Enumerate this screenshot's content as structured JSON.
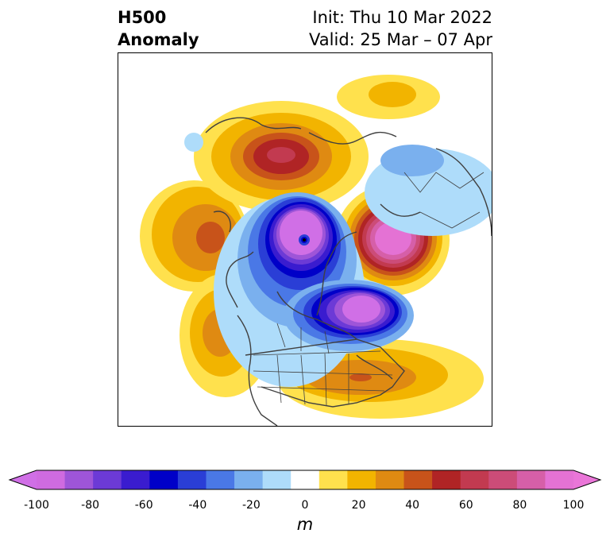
{
  "title": {
    "variable_line1": "H500",
    "variable_line2": "Anomaly",
    "init": "Init: Thu 10 Mar 2022",
    "valid": "Valid: 25 Mar – 07 Apr"
  },
  "map": {
    "projection": "north-polar-stereographic",
    "region": "North America / Arctic",
    "features": [
      {
        "name": "positive-anomaly-gulf-of-alaska",
        "peak_m": 60
      },
      {
        "name": "positive-anomaly-siberia-bering",
        "peak_m": 70
      },
      {
        "name": "positive-anomaly-scandinavia-barents",
        "peak_m": 100
      },
      {
        "name": "positive-anomaly-north-pacific",
        "peak_m": 50
      },
      {
        "name": "positive-anomaly-southeast-us",
        "peak_m": 50
      },
      {
        "name": "negative-anomaly-arctic-ocean",
        "peak_m": -100
      },
      {
        "name": "negative-anomaly-greenland-labrador",
        "peak_m": -100
      },
      {
        "name": "negative-anomaly-western-canada",
        "peak_m": -20
      }
    ]
  },
  "colorbar": {
    "unit_label": "m",
    "ticks": [
      "-100",
      "-80",
      "-60",
      "-40",
      "-20",
      "0",
      "20",
      "40",
      "60",
      "80",
      "100"
    ],
    "levels": [
      -100,
      -90,
      -80,
      -70,
      -60,
      -50,
      -40,
      -30,
      -20,
      -10,
      10,
      20,
      30,
      40,
      50,
      60,
      70,
      80,
      90,
      100
    ],
    "colors": [
      "#cf6be0",
      "#9e55d8",
      "#6c3ad6",
      "#3a1ccf",
      "#0000c8",
      "#2a3ed6",
      "#4a78e6",
      "#7ab0ee",
      "#aedcfa",
      "#ffffff",
      "#ffe14d",
      "#f2b400",
      "#df8a12",
      "#c8531a",
      "#b02425",
      "#c23a50",
      "#cc4c78",
      "#d65fa8",
      "#e472d4"
    ],
    "extend_min_color": "#d06fe6",
    "extend_max_color": "#ea76d8"
  }
}
